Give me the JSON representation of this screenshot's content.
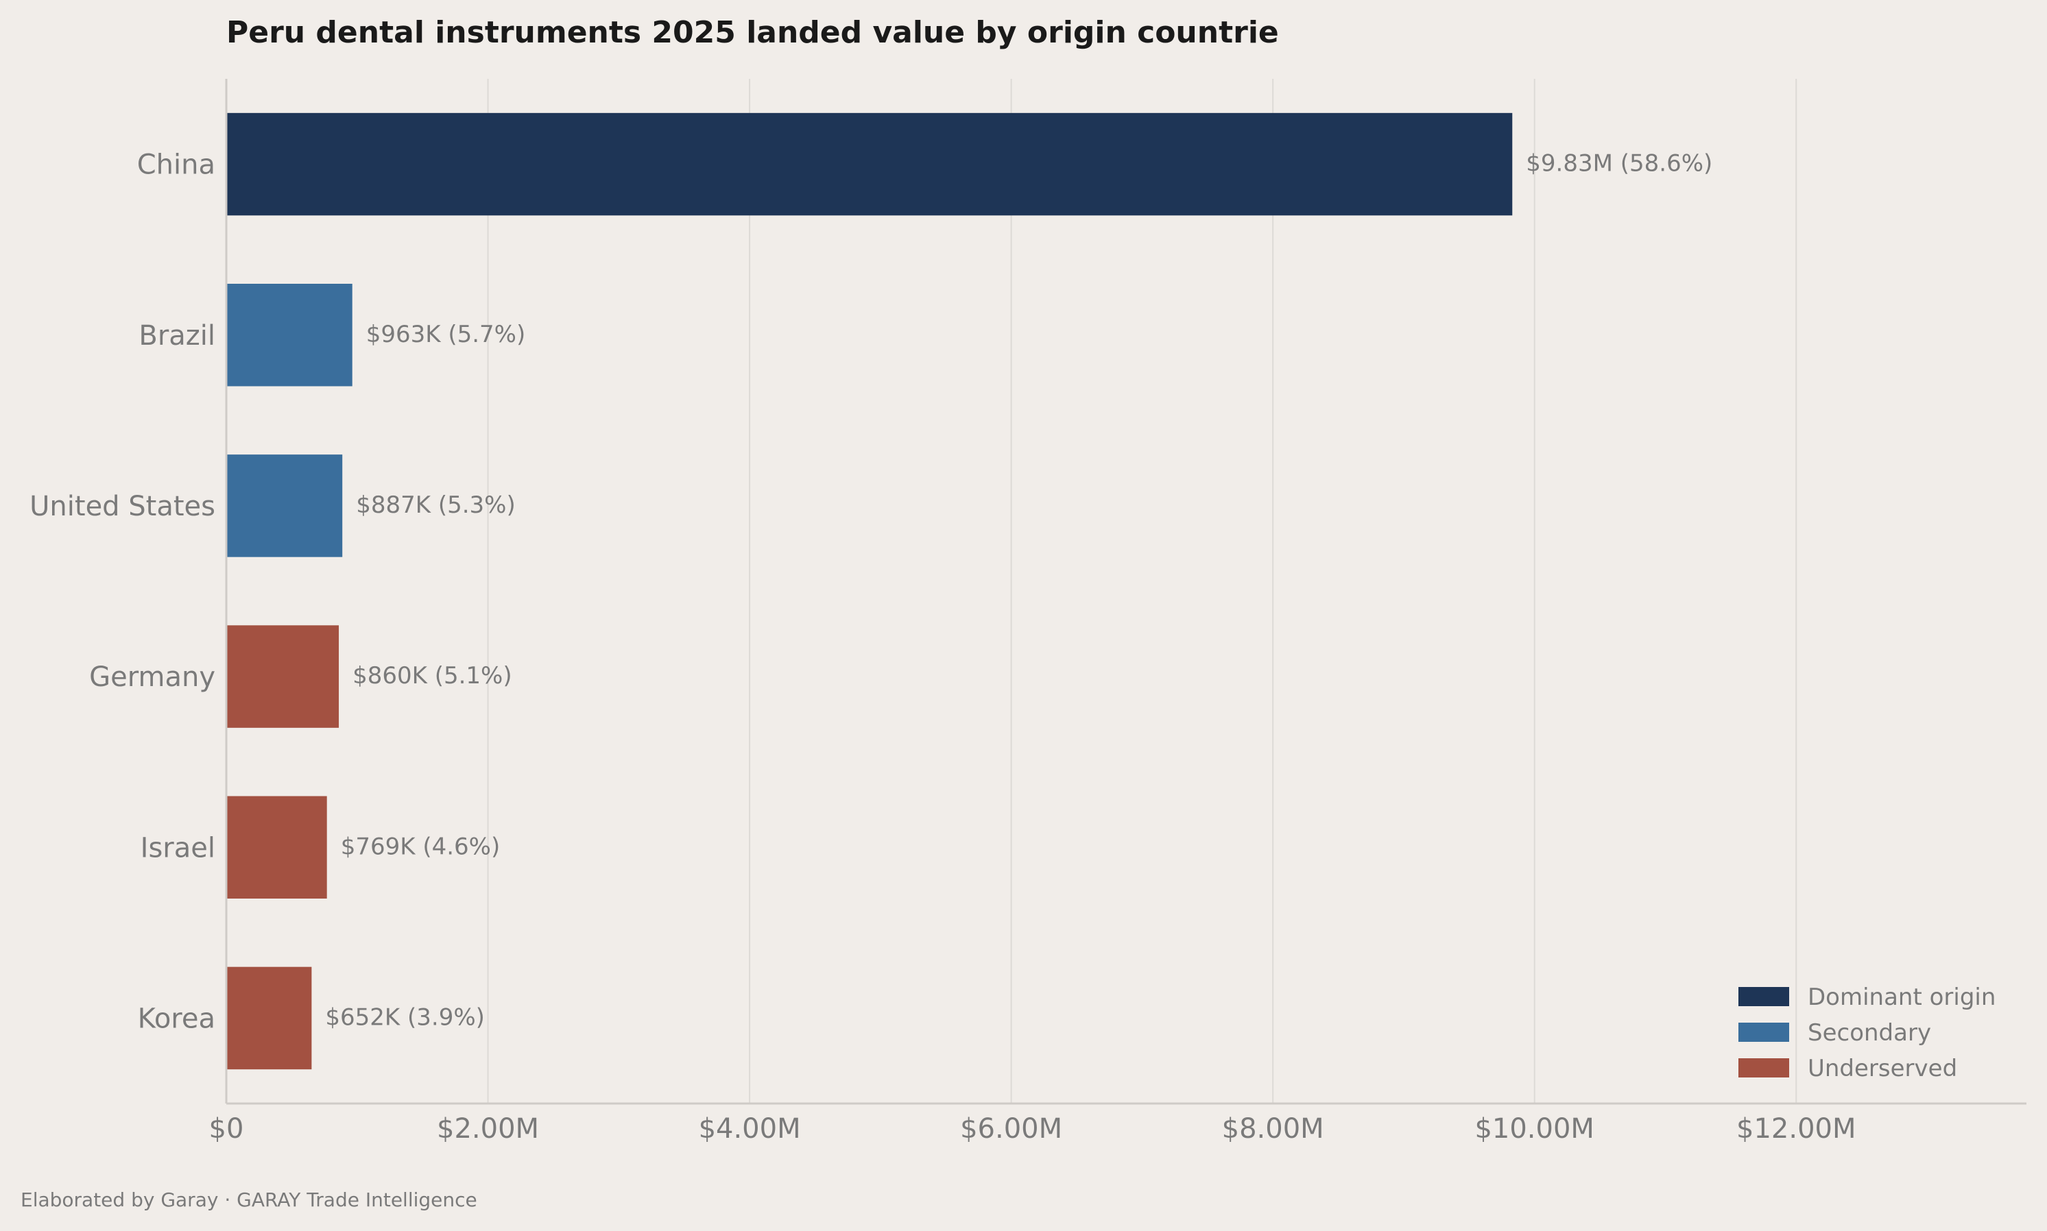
{
  "chart_data": {
    "type": "bar",
    "orientation": "horizontal",
    "title": "Peru dental instruments 2025 landed value by origin countrie",
    "xlabel": "",
    "ylabel": "",
    "categories": [
      "China",
      "Brazil",
      "United States",
      "Germany",
      "Israel",
      "Korea"
    ],
    "values": [
      9830000,
      963000,
      887000,
      860000,
      769000,
      652000
    ],
    "value_labels": [
      "$9.83M  (58.6%)",
      "$963K  (5.7%)",
      "$887K  (5.3%)",
      "$860K  (5.1%)",
      "$769K  (4.6%)",
      "$652K  (3.9%)"
    ],
    "groups": [
      "Dominant origin",
      "Secondary",
      "Secondary",
      "Underserved",
      "Underserved",
      "Underserved"
    ],
    "xlim": [
      0,
      13760000
    ],
    "xticks": [
      0,
      2000000,
      4000000,
      6000000,
      8000000,
      10000000,
      12000000
    ],
    "xtick_labels": [
      "$0",
      "$2.00M",
      "$4.00M",
      "$6.00M",
      "$8.00M",
      "$10.00M",
      "$12.00M"
    ],
    "grid": "vertical",
    "legend": {
      "position": "bottom-right",
      "items": [
        {
          "label": "Dominant origin",
          "color": "#1e3556"
        },
        {
          "label": "Secondary",
          "color": "#3a6e9c"
        },
        {
          "label": "Underserved",
          "color": "#a35141"
        }
      ]
    }
  },
  "footer": "Elaborated by Garay  ·  GARAY Trade Intelligence",
  "colors": {
    "background": "#f1ede9",
    "grid": "#dddad6",
    "axis": "#cfcbc7"
  }
}
